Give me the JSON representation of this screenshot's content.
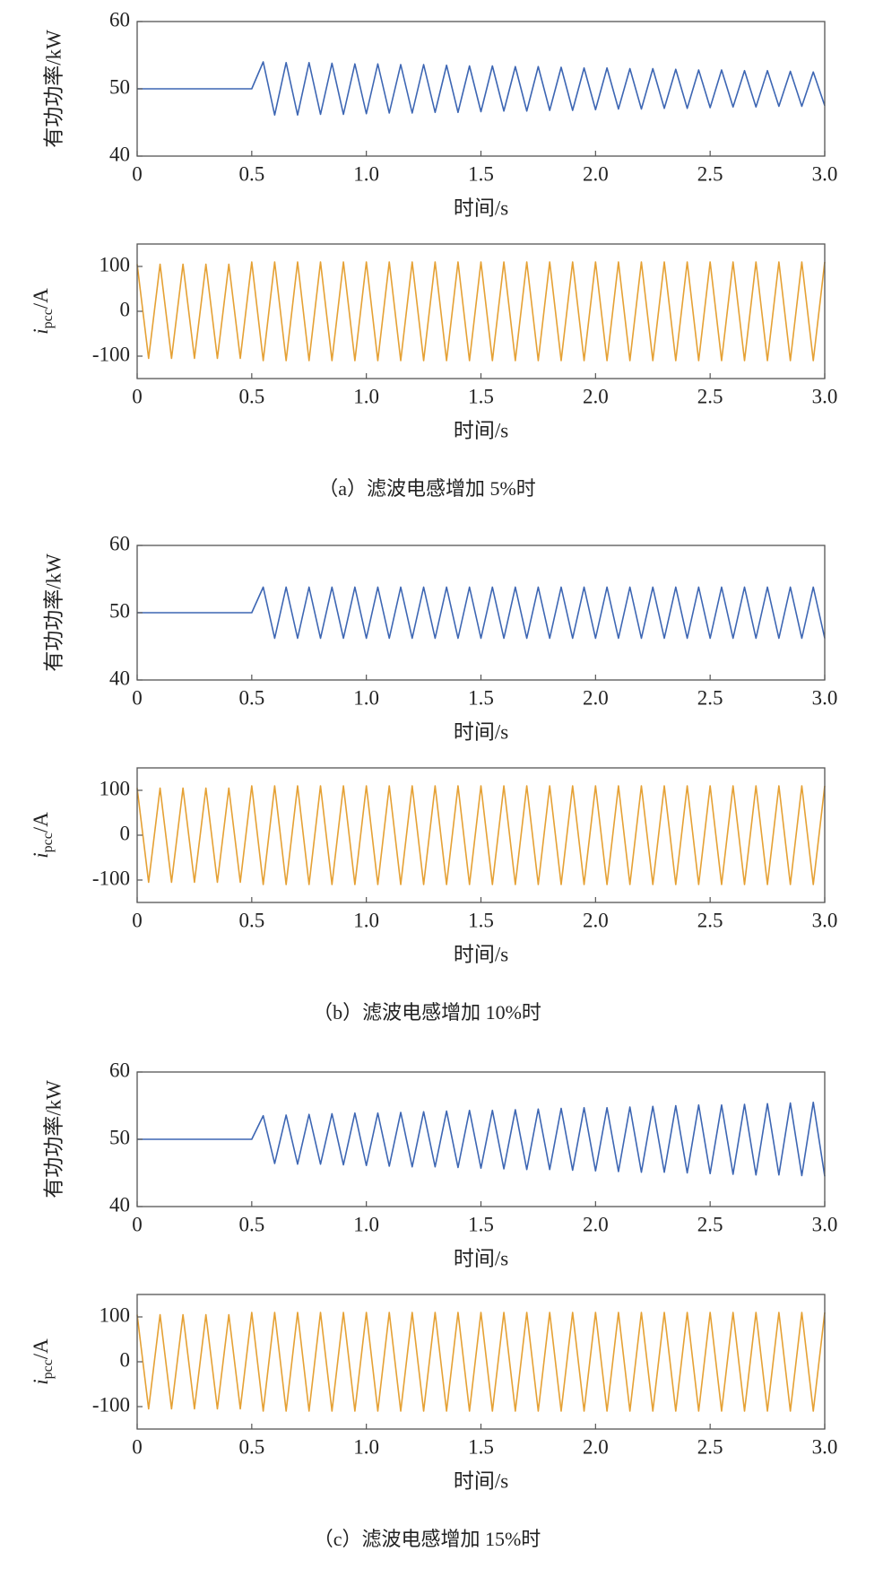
{
  "chart_data": [
    {
      "type": "line",
      "ylabel": "有功功率/kW",
      "xlabel": "时间/s",
      "xlim": [
        0,
        3
      ],
      "xticks": [
        0,
        0.5,
        {
          "value": 1,
          "label": "1.0"
        },
        1.5,
        {
          "value": 2,
          "label": "2.0"
        },
        2.5,
        {
          "value": 3,
          "label": "3.0"
        }
      ],
      "ylim": [
        40,
        60
      ],
      "yticks": [
        40,
        50,
        60
      ],
      "x": [
        0,
        0.5,
        0.55,
        0.6,
        0.65,
        0.7,
        0.75,
        0.8,
        0.85,
        0.9,
        0.95,
        1,
        1.05,
        1.1,
        1.15,
        1.2,
        1.25,
        1.3,
        1.35,
        1.4,
        1.45,
        1.5,
        1.55,
        1.6,
        1.65,
        1.7,
        1.75,
        1.8,
        1.85,
        1.9,
        1.95,
        2,
        2.05,
        2.1,
        2.15,
        2.2,
        2.25,
        2.3,
        2.35,
        2.4,
        2.45,
        2.5,
        2.55,
        2.6,
        2.65,
        2.7,
        2.75,
        2.8,
        2.85,
        2.9,
        2.95,
        3
      ],
      "series": [
        {
          "color": "#3d66b3",
          "values": [
            50,
            50,
            54.0,
            46.1,
            53.9,
            46.1,
            53.9,
            46.2,
            53.8,
            46.2,
            53.7,
            46.3,
            53.7,
            46.4,
            53.6,
            46.4,
            53.6,
            46.5,
            53.5,
            46.5,
            53.4,
            46.6,
            53.4,
            46.7,
            53.3,
            46.7,
            53.3,
            46.8,
            53.2,
            46.8,
            53.1,
            46.9,
            53.1,
            47.0,
            53.0,
            47.0,
            53.0,
            47.1,
            52.9,
            47.1,
            52.8,
            47.2,
            52.8,
            47.3,
            52.7,
            47.3,
            52.7,
            47.4,
            52.6,
            47.4,
            52.5,
            47.5
          ]
        }
      ]
    },
    {
      "type": "line",
      "ylabel": {
        "symbol": "i",
        "subscript": "pcc",
        "unit": "/A"
      },
      "xlabel": "时间/s",
      "caption": "（a）滤波电感增加 5%时",
      "xlim": [
        0,
        3
      ],
      "xticks": [
        0,
        0.5,
        {
          "value": 1,
          "label": "1.0"
        },
        1.5,
        {
          "value": 2,
          "label": "2.0"
        },
        2.5,
        {
          "value": 3,
          "label": "3.0"
        }
      ],
      "ylim": [
        -150,
        150
      ],
      "yticks": [
        -100,
        0,
        100
      ],
      "x": [
        0,
        0.05,
        0.1,
        0.15,
        0.2,
        0.25,
        0.3,
        0.35,
        0.4,
        0.45,
        0.5,
        0.55,
        0.6,
        0.65,
        0.7,
        0.75,
        0.8,
        0.85,
        0.9,
        0.95,
        1,
        1.05,
        1.1,
        1.15,
        1.2,
        1.25,
        1.3,
        1.35,
        1.4,
        1.45,
        1.5,
        1.55,
        1.6,
        1.65,
        1.7,
        1.75,
        1.8,
        1.85,
        1.9,
        1.95,
        2,
        2.05,
        2.1,
        2.15,
        2.2,
        2.25,
        2.3,
        2.35,
        2.4,
        2.45,
        2.5,
        2.55,
        2.6,
        2.65,
        2.7,
        2.75,
        2.8,
        2.85,
        2.9,
        2.95,
        3
      ],
      "series": [
        {
          "color": "#e5a135",
          "values": [
            105,
            -105,
            105,
            -105,
            105,
            -105,
            105,
            -105,
            105,
            -105,
            110,
            -110,
            110,
            -110,
            110,
            -110,
            110,
            -110,
            110,
            -110,
            110,
            -110,
            110,
            -110,
            110,
            -110,
            110,
            -110,
            110,
            -110,
            110,
            -110,
            110,
            -110,
            110,
            -110,
            110,
            -110,
            110,
            -110,
            110,
            -110,
            110,
            -110,
            110,
            -110,
            110,
            -110,
            110,
            -110,
            110,
            -110,
            110,
            -110,
            110,
            -110,
            110,
            -110,
            110,
            -110,
            110
          ]
        }
      ]
    },
    {
      "type": "line",
      "ylabel": "有功功率/kW",
      "xlabel": "时间/s",
      "xlim": [
        0,
        3
      ],
      "xticks": [
        0,
        0.5,
        {
          "value": 1,
          "label": "1.0"
        },
        1.5,
        {
          "value": 2,
          "label": "2.0"
        },
        2.5,
        {
          "value": 3,
          "label": "3.0"
        }
      ],
      "ylim": [
        40,
        60
      ],
      "yticks": [
        40,
        50,
        60
      ],
      "x": [
        0,
        0.5,
        0.55,
        0.6,
        0.65,
        0.7,
        0.75,
        0.8,
        0.85,
        0.9,
        0.95,
        1,
        1.05,
        1.1,
        1.15,
        1.2,
        1.25,
        1.3,
        1.35,
        1.4,
        1.45,
        1.5,
        1.55,
        1.6,
        1.65,
        1.7,
        1.75,
        1.8,
        1.85,
        1.9,
        1.95,
        2,
        2.05,
        2.1,
        2.15,
        2.2,
        2.25,
        2.3,
        2.35,
        2.4,
        2.45,
        2.5,
        2.55,
        2.6,
        2.65,
        2.7,
        2.75,
        2.8,
        2.85,
        2.9,
        2.95,
        3
      ],
      "series": [
        {
          "color": "#3d66b3",
          "values": [
            50,
            50,
            53.8,
            46.2,
            53.8,
            46.2,
            53.8,
            46.2,
            53.8,
            46.2,
            53.8,
            46.2,
            53.8,
            46.2,
            53.8,
            46.2,
            53.8,
            46.2,
            53.8,
            46.2,
            53.8,
            46.2,
            53.8,
            46.2,
            53.8,
            46.2,
            53.8,
            46.2,
            53.8,
            46.2,
            53.8,
            46.2,
            53.8,
            46.2,
            53.8,
            46.2,
            53.8,
            46.2,
            53.8,
            46.2,
            53.8,
            46.2,
            53.8,
            46.2,
            53.8,
            46.2,
            53.8,
            46.2,
            53.8,
            46.2,
            53.8,
            46.2
          ]
        }
      ]
    },
    {
      "type": "line",
      "ylabel": {
        "symbol": "i",
        "subscript": "pcc",
        "unit": "/A"
      },
      "xlabel": "时间/s",
      "caption": "（b）滤波电感增加 10%时",
      "xlim": [
        0,
        3
      ],
      "xticks": [
        0,
        0.5,
        {
          "value": 1,
          "label": "1.0"
        },
        1.5,
        {
          "value": 2,
          "label": "2.0"
        },
        2.5,
        {
          "value": 3,
          "label": "3.0"
        }
      ],
      "ylim": [
        -150,
        150
      ],
      "yticks": [
        -100,
        0,
        100
      ],
      "x": [
        0,
        0.05,
        0.1,
        0.15,
        0.2,
        0.25,
        0.3,
        0.35,
        0.4,
        0.45,
        0.5,
        0.55,
        0.6,
        0.65,
        0.7,
        0.75,
        0.8,
        0.85,
        0.9,
        0.95,
        1,
        1.05,
        1.1,
        1.15,
        1.2,
        1.25,
        1.3,
        1.35,
        1.4,
        1.45,
        1.5,
        1.55,
        1.6,
        1.65,
        1.7,
        1.75,
        1.8,
        1.85,
        1.9,
        1.95,
        2,
        2.05,
        2.1,
        2.15,
        2.2,
        2.25,
        2.3,
        2.35,
        2.4,
        2.45,
        2.5,
        2.55,
        2.6,
        2.65,
        2.7,
        2.75,
        2.8,
        2.85,
        2.9,
        2.95,
        3
      ],
      "series": [
        {
          "color": "#e5a135",
          "values": [
            105,
            -105,
            105,
            -105,
            105,
            -105,
            105,
            -105,
            105,
            -105,
            110,
            -110,
            110,
            -110,
            110,
            -110,
            110,
            -110,
            110,
            -110,
            110,
            -110,
            110,
            -110,
            110,
            -110,
            110,
            -110,
            110,
            -110,
            110,
            -110,
            110,
            -110,
            110,
            -110,
            110,
            -110,
            110,
            -110,
            110,
            -110,
            110,
            -110,
            110,
            -110,
            110,
            -110,
            110,
            -110,
            110,
            -110,
            110,
            -110,
            110,
            -110,
            110,
            -110,
            110,
            -110,
            110
          ]
        }
      ]
    },
    {
      "type": "line",
      "ylabel": "有功功率/kW",
      "xlabel": "时间/s",
      "xlim": [
        0,
        3
      ],
      "xticks": [
        0,
        0.5,
        {
          "value": 1,
          "label": "1.0"
        },
        1.5,
        {
          "value": 2,
          "label": "2.0"
        },
        2.5,
        {
          "value": 3,
          "label": "3.0"
        }
      ],
      "ylim": [
        40,
        60
      ],
      "yticks": [
        40,
        50,
        60
      ],
      "x": [
        0,
        0.5,
        0.55,
        0.6,
        0.65,
        0.7,
        0.75,
        0.8,
        0.85,
        0.9,
        0.95,
        1,
        1.05,
        1.1,
        1.15,
        1.2,
        1.25,
        1.3,
        1.35,
        1.4,
        1.45,
        1.5,
        1.55,
        1.6,
        1.65,
        1.7,
        1.75,
        1.8,
        1.85,
        1.9,
        1.95,
        2,
        2.05,
        2.1,
        2.15,
        2.2,
        2.25,
        2.3,
        2.35,
        2.4,
        2.45,
        2.5,
        2.55,
        2.6,
        2.65,
        2.7,
        2.75,
        2.8,
        2.85,
        2.9,
        2.95,
        3
      ],
      "series": [
        {
          "color": "#3d66b3",
          "values": [
            50,
            50,
            53.5,
            46.4,
            53.6,
            46.3,
            53.7,
            46.3,
            53.8,
            46.2,
            53.9,
            46.1,
            53.9,
            46.0,
            54.0,
            45.9,
            54.1,
            45.9,
            54.2,
            45.8,
            54.3,
            45.7,
            54.3,
            45.6,
            54.4,
            45.5,
            54.5,
            45.5,
            54.6,
            45.4,
            54.7,
            45.3,
            54.7,
            45.2,
            54.8,
            45.1,
            54.9,
            45.1,
            55.0,
            45.0,
            55.1,
            44.9,
            55.1,
            44.8,
            55.2,
            44.7,
            55.3,
            44.7,
            55.4,
            44.6,
            55.5,
            44.5
          ]
        }
      ]
    },
    {
      "type": "line",
      "ylabel": {
        "symbol": "i",
        "subscript": "pcc",
        "unit": "/A"
      },
      "xlabel": "时间/s",
      "caption": "（c）滤波电感增加 15%时",
      "xlim": [
        0,
        3
      ],
      "xticks": [
        0,
        0.5,
        {
          "value": 1,
          "label": "1.0"
        },
        1.5,
        {
          "value": 2,
          "label": "2.0"
        },
        2.5,
        {
          "value": 3,
          "label": "3.0"
        }
      ],
      "ylim": [
        -150,
        150
      ],
      "yticks": [
        -100,
        0,
        100
      ],
      "x": [
        0,
        0.05,
        0.1,
        0.15,
        0.2,
        0.25,
        0.3,
        0.35,
        0.4,
        0.45,
        0.5,
        0.55,
        0.6,
        0.65,
        0.7,
        0.75,
        0.8,
        0.85,
        0.9,
        0.95,
        1,
        1.05,
        1.1,
        1.15,
        1.2,
        1.25,
        1.3,
        1.35,
        1.4,
        1.45,
        1.5,
        1.55,
        1.6,
        1.65,
        1.7,
        1.75,
        1.8,
        1.85,
        1.9,
        1.95,
        2,
        2.05,
        2.1,
        2.15,
        2.2,
        2.25,
        2.3,
        2.35,
        2.4,
        2.45,
        2.5,
        2.55,
        2.6,
        2.65,
        2.7,
        2.75,
        2.8,
        2.85,
        2.9,
        2.95,
        3
      ],
      "series": [
        {
          "color": "#e5a135",
          "values": [
            105,
            -105,
            105,
            -105,
            105,
            -105,
            105,
            -105,
            105,
            -105,
            110,
            -110,
            110,
            -110,
            110,
            -110,
            110,
            -110,
            110,
            -110,
            110,
            -110,
            110,
            -110,
            110,
            -110,
            110,
            -110,
            110,
            -110,
            110,
            -110,
            110,
            -110,
            110,
            -110,
            110,
            -110,
            110,
            -110,
            110,
            -110,
            110,
            -110,
            110,
            -110,
            110,
            -110,
            110,
            -110,
            110,
            -110,
            110,
            -110,
            110,
            -110,
            110,
            -110,
            110,
            -110,
            110
          ]
        }
      ]
    }
  ]
}
